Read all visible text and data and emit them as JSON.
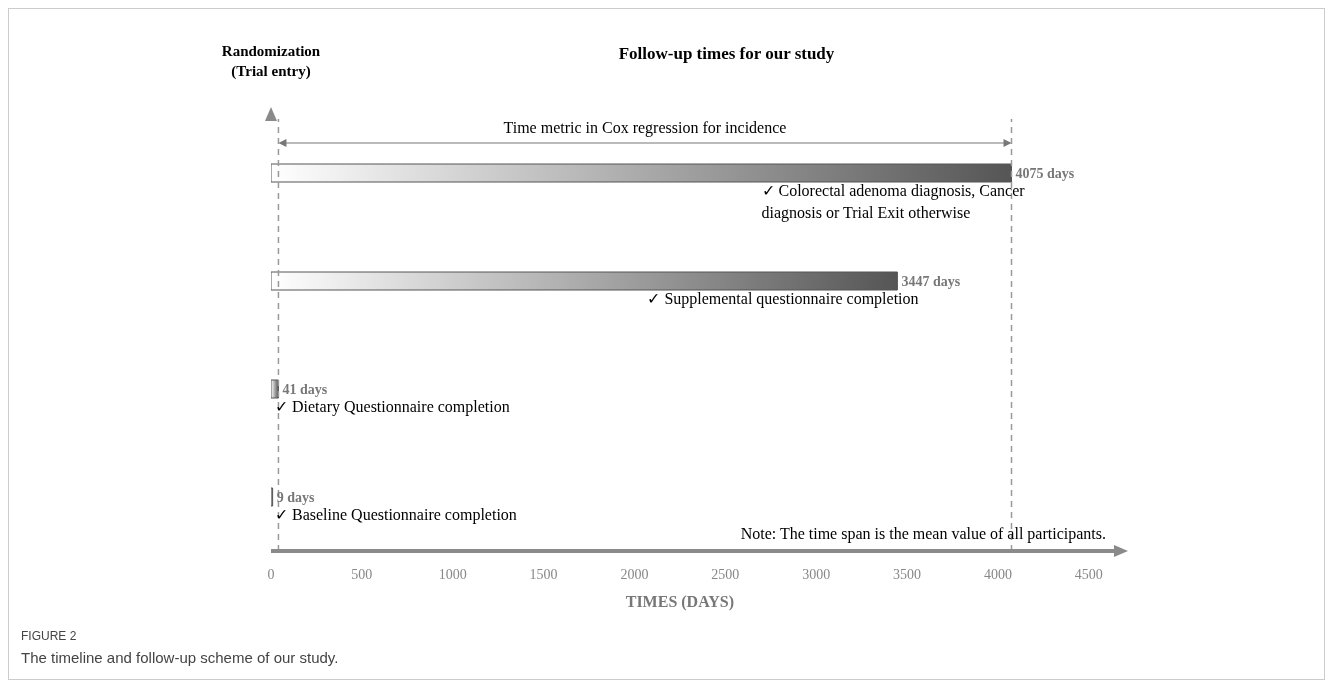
{
  "chart_data": {
    "type": "bar",
    "orientation": "horizontal",
    "title": "Follow-up times for our study",
    "ylabel": "Randomization\n(Trial entry)",
    "xlabel": "TIMES (DAYS)",
    "categories": [
      null,
      null,
      null,
      null
    ],
    "values": [
      4075,
      3447,
      41,
      9
    ],
    "value_labels": [
      "4075 days",
      "3447 days",
      "41 days",
      "9 days"
    ],
    "color": "#555555",
    "xlim": [
      0,
      4650
    ],
    "xticks": [
      0,
      500,
      1000,
      1500,
      2000,
      2500,
      3000,
      3500,
      4000,
      4500
    ],
    "ref_lines": [
      {
        "axis": "x",
        "value": 41,
        "color": "#999999",
        "line_style": "dashed"
      },
      {
        "axis": "x",
        "value": 4075,
        "color": "#999999",
        "line_style": "dashed"
      }
    ],
    "annotations": [
      "✓  Colorectal adenoma diagnosis, Cancer diagnosis or Trial Exit otherwise",
      "✓  Supplemental questionnaire completion",
      "✓  Dietary Questionnaire completion",
      "✓  Baseline Questionnaire completion",
      "Time metric in Cox regression for incidence",
      "Note: The time span is the mean value of all participants.",
      "FIGURE 2",
      "The timeline and follow-up scheme of our study."
    ]
  }
}
